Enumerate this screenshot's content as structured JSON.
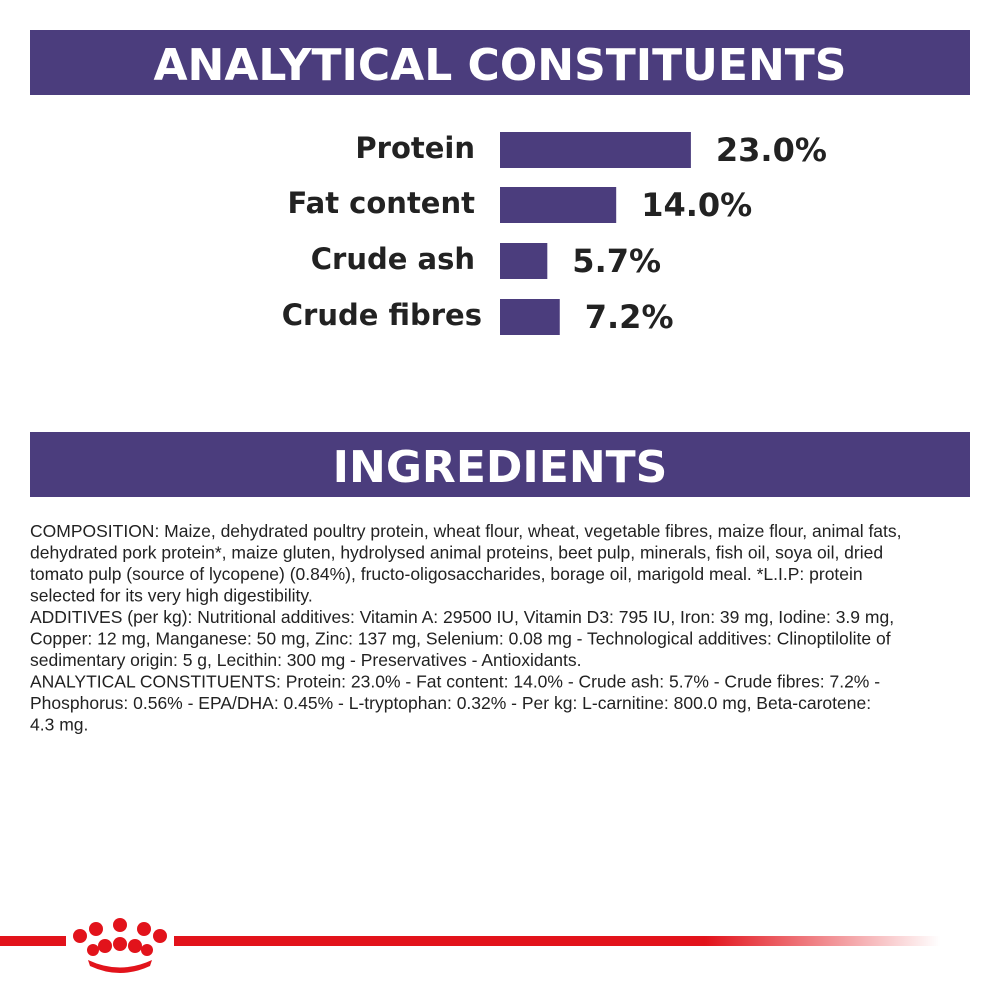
{
  "chart_data": {
    "type": "bar",
    "title": "ANALYTICAL CONSTITUENTS",
    "categories": [
      "Protein",
      "Fat content",
      "Crude ash",
      "Crude fibres"
    ],
    "values": [
      23.0,
      14.0,
      5.7,
      7.2
    ],
    "value_labels": [
      "23.0%",
      "14.0%",
      "5.7%",
      "7.2%"
    ],
    "color": "#4b3d7d"
  },
  "ingredients": {
    "title": "INGREDIENTS",
    "lines": [
      "COMPOSITION: Maize, dehydrated poultry protein, wheat flour, wheat, vegetable fibres, maize flour, animal fats,",
      "dehydrated pork protein*, maize gluten, hydrolysed animal proteins, beet pulp, minerals, fish oil, soya oil, dried",
      "tomato pulp (source of lycopene) (0.84%), fructo-oligosaccharides, borage oil, marigold meal. *L.I.P: protein",
      "selected for its very high digestibility.",
      "ADDITIVES (per kg): Nutritional additives: Vitamin A: 29500 IU, Vitamin D3: 795 IU, Iron: 39 mg, Iodine: 3.9 mg,",
      "Copper: 12 mg, Manganese: 50 mg, Zinc: 137 mg, Selenium: 0.08 mg - Technological additives: Clinoptilolite of",
      "sedimentary origin: 5 g, Lecithin: 300 mg - Preservatives - Antioxidants.",
      "ANALYTICAL CONSTITUENTS: Protein: 23.0% - Fat content: 14.0% - Crude ash: 5.7% - Crude fibres: 7.2% -",
      "Phosphorus: 0.56% - EPA/DHA: 0.45% - L-tryptophan: 0.32% - Per kg: L-carnitine: 800.0 mg, Beta-carotene:",
      "4.3 mg."
    ]
  }
}
